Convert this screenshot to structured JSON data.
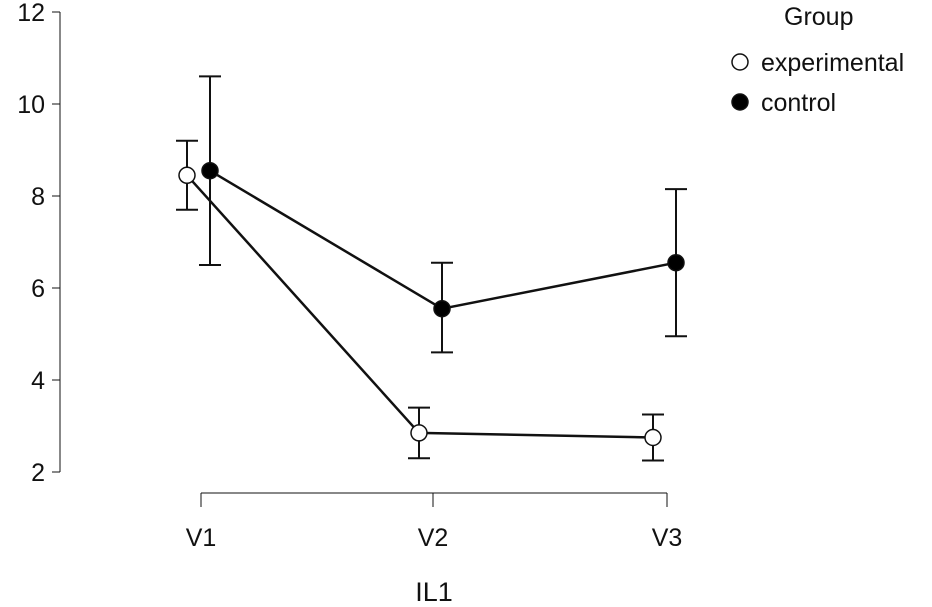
{
  "chart_data": {
    "type": "line",
    "xlabel": "IL1",
    "ylabel": "",
    "categories": [
      "V1",
      "V2",
      "V3"
    ],
    "ylim": [
      2,
      12
    ],
    "yticks": [
      "2",
      "4",
      "6",
      "8",
      "10",
      "12"
    ],
    "legend": {
      "title": "Group",
      "placement": "top-right"
    },
    "series": [
      {
        "name": "experimental",
        "marker": "open-circle",
        "values": [
          8.45,
          2.85,
          2.75
        ],
        "error_low": [
          7.7,
          2.3,
          2.25
        ],
        "error_high": [
          9.2,
          3.4,
          3.25
        ]
      },
      {
        "name": "control",
        "marker": "filled-circle",
        "values": [
          8.55,
          5.55,
          6.55
        ],
        "error_low": [
          6.5,
          4.6,
          4.95
        ],
        "error_high": [
          10.6,
          6.55,
          8.15
        ]
      }
    ],
    "colors": {
      "line": "#111111",
      "open_fill": "#ffffff",
      "filled_fill": "#000000"
    },
    "grid": false
  }
}
